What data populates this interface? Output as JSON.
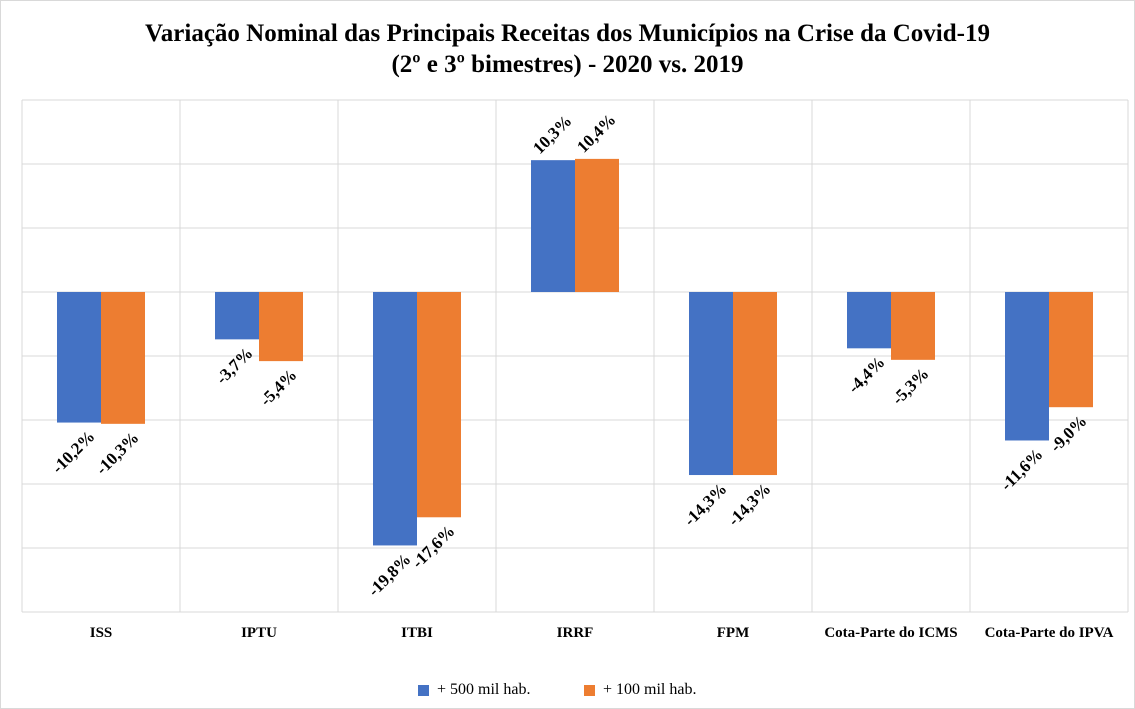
{
  "chart_data": {
    "type": "bar",
    "title": "Variação Nominal das Principais Receitas dos Municípios na Crise da Covid-19 (2º e 3º bimestres) - 2020 vs. 2019",
    "categories": [
      "ISS",
      "IPTU",
      "ITBI",
      "IRRF",
      "FPM",
      "Cota-Parte do ICMS",
      "Cota-Parte do IPVA"
    ],
    "series": [
      {
        "name": "+ 500 mil hab.",
        "color": "#4472c4",
        "values": [
          -10.2,
          -3.7,
          -19.8,
          10.3,
          -14.3,
          -4.4,
          -11.6
        ],
        "value_labels": [
          "-10,2%",
          "-3,7%",
          "-19,8%",
          "10,3%",
          "-14,3%",
          "-4,4%",
          "-11,6%"
        ]
      },
      {
        "name": "+ 100 mil hab.",
        "color": "#ed7d31",
        "values": [
          -10.3,
          -5.4,
          -17.6,
          10.4,
          -14.3,
          -5.3,
          -9.0
        ],
        "value_labels": [
          "-10,3%",
          "-5,4%",
          "-17,6%",
          "10,4%",
          "-14,3%",
          "-5,3%",
          "-9,0%"
        ]
      }
    ],
    "ylim": [
      -25,
      15
    ],
    "yticks": [
      -25,
      -20,
      -15,
      -10,
      -5,
      0,
      5,
      10,
      15
    ],
    "grid": true
  }
}
